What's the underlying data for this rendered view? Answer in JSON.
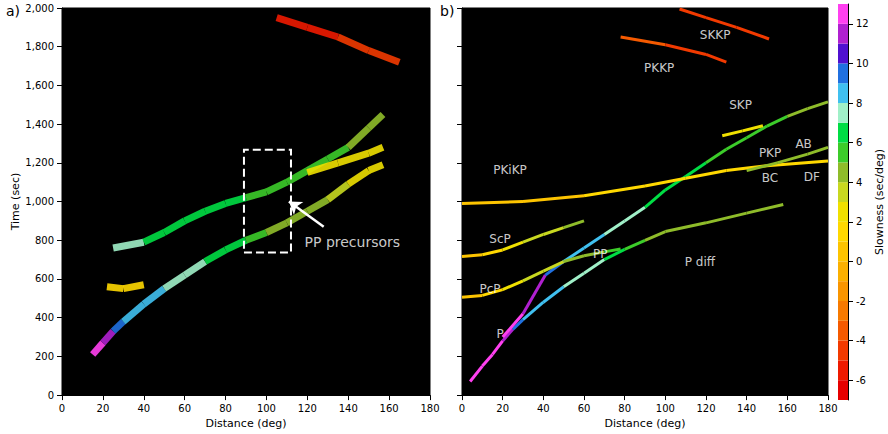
{
  "chart_data": [
    {
      "type": "line",
      "title": "a)",
      "x_label": "Distance (deg)",
      "y_label": "Time (sec)",
      "xlim": [
        0,
        180
      ],
      "xticks": [
        0,
        20,
        40,
        60,
        80,
        100,
        120,
        140,
        160,
        180
      ],
      "ylim": [
        0,
        2000
      ],
      "yticks": [
        0,
        200,
        400,
        600,
        800,
        1000,
        1200,
        1400,
        1600,
        1800,
        2000
      ],
      "grid": false,
      "legend": false,
      "series": [
        {
          "values": [
            [
              15,
              210,
              12.5
            ],
            [
              20,
              270,
              11
            ],
            [
              25,
              330,
              9
            ],
            [
              30,
              380,
              8.5
            ],
            [
              40,
              470,
              8
            ],
            [
              50,
              550,
              7.5
            ],
            [
              60,
              620,
              7
            ],
            [
              70,
              690,
              6.5
            ],
            [
              80,
              750,
              6
            ],
            [
              90,
              800,
              5
            ],
            [
              100,
              840,
              4.5
            ],
            [
              110,
              890,
              4.5
            ],
            [
              120,
              950,
              4
            ],
            [
              130,
              1010,
              3
            ],
            [
              140,
              1090,
              2
            ],
            [
              150,
              1160,
              2
            ],
            [
              157,
              1190,
              1.5
            ]
          ]
        },
        {
          "values": [
            [
              22,
              560,
              1
            ],
            [
              30,
              550,
              1
            ],
            [
              40,
              570,
              2
            ]
          ]
        },
        {
          "values": [
            [
              25,
              760,
              7
            ],
            [
              40,
              790,
              6.5
            ],
            [
              50,
              840,
              6.5
            ],
            [
              60,
              900,
              6
            ],
            [
              70,
              950,
              6
            ],
            [
              80,
              990,
              6
            ],
            [
              90,
              1020,
              5.5
            ],
            [
              100,
              1050,
              5.5
            ],
            [
              110,
              1100,
              5.5
            ],
            [
              120,
              1160,
              5
            ],
            [
              130,
              1220,
              5
            ],
            [
              140,
              1280,
              4.5
            ],
            [
              150,
              1380,
              4.5
            ],
            [
              157,
              1450,
              4
            ]
          ]
        },
        {
          "values": [
            [
              120,
              1150,
              2.5
            ],
            [
              135,
              1200,
              2.5
            ],
            [
              150,
              1250,
              2
            ],
            [
              157,
              1280,
              2
            ]
          ]
        },
        {
          "values": [
            [
              105,
              1950,
              -6
            ],
            [
              120,
              1900,
              -6
            ],
            [
              135,
              1850,
              -5
            ],
            [
              150,
              1780,
              -5
            ],
            [
              165,
              1720,
              -4
            ]
          ]
        }
      ],
      "annotations": [
        {
          "text": "PP precursors",
          "x": 142,
          "y": 789,
          "arrow_from": [
            128,
            870
          ],
          "arrow_to": [
            111,
            1000
          ]
        }
      ],
      "box": {
        "xlim": [
          89,
          112
        ],
        "ylim": [
          737,
          1268
        ]
      }
    },
    {
      "type": "line",
      "title": "b)",
      "x_label": "Distance (deg)",
      "xlim": [
        0,
        180
      ],
      "xticks": [
        0,
        20,
        40,
        60,
        80,
        100,
        120,
        140,
        160,
        180
      ],
      "ylim": [
        0,
        2000
      ],
      "yticks": [
        0,
        200,
        400,
        600,
        800,
        1000,
        1200,
        1400,
        1600,
        1800,
        2000
      ],
      "grid": false,
      "legend": false,
      "tick_labels": "x",
      "series": [
        {
          "name": "P",
          "label_at": [
            18.7,
            314
          ],
          "values": [
            [
              4,
              70,
              13
            ],
            [
              10,
              150,
              13
            ],
            [
              15,
              210,
              12.5
            ],
            [
              20,
              280,
              11
            ],
            [
              25,
              340,
              9
            ],
            [
              30,
              390,
              8.5
            ],
            [
              40,
              480,
              8
            ],
            [
              50,
              560,
              7.5
            ],
            [
              60,
              630,
              7
            ],
            [
              70,
              700,
              6.5
            ],
            [
              80,
              753,
              5.5
            ],
            [
              90,
              800,
              4.8
            ],
            [
              100,
              845,
              4.5
            ]
          ]
        },
        {
          "name": "P diff",
          "label_at": [
            117,
            690
          ],
          "values": [
            [
              100,
              845,
              4.4
            ],
            [
              120,
              890,
              4.4
            ],
            [
              140,
              940,
              4.4
            ],
            [
              158,
              985,
              4.4
            ]
          ]
        },
        {
          "name": "PP",
          "label_at": [
            68,
            727
          ],
          "values": [
            [
              20,
              300,
              12
            ],
            [
              30,
              420,
              11
            ],
            [
              41,
              620,
              9
            ],
            [
              50,
              690,
              8.5
            ],
            [
              60,
              760,
              8
            ],
            [
              70,
              830,
              7.5
            ],
            [
              80,
              900,
              7
            ],
            [
              90,
              970,
              6.5
            ],
            [
              100,
              1060,
              6
            ],
            [
              110,
              1130,
              6
            ],
            [
              120,
              1200,
              5.5
            ],
            [
              130,
              1270,
              5.5
            ],
            [
              140,
              1330,
              5
            ],
            [
              150,
              1390,
              5
            ],
            [
              160,
              1440,
              4.5
            ],
            [
              170,
              1480,
              4.5
            ],
            [
              180,
              1515,
              4
            ]
          ]
        },
        {
          "name": "PcP",
          "label_at": [
            13.8,
            546
          ],
          "values": [
            [
              0,
              505,
              0
            ],
            [
              10,
              515,
              1
            ],
            [
              20,
              545,
              2
            ],
            [
              30,
              590,
              3
            ],
            [
              40,
              640,
              3.5
            ],
            [
              50,
              690,
              4
            ],
            [
              60,
              720,
              4.5
            ],
            [
              70,
              740,
              5
            ],
            [
              78,
              755,
              5
            ]
          ]
        },
        {
          "name": "ScP",
          "label_at": [
            18.7,
            804
          ],
          "values": [
            [
              0,
              716,
              0
            ],
            [
              10,
              725,
              1
            ],
            [
              20,
              750,
              2
            ],
            [
              30,
              790,
              3
            ],
            [
              40,
              830,
              3.5
            ],
            [
              50,
              865,
              4
            ],
            [
              60,
              900,
              4.5
            ]
          ]
        },
        {
          "name": "PKiKP",
          "label_at": [
            23.6,
            1165
          ],
          "values": [
            [
              0,
              990,
              0
            ],
            [
              30,
              1000,
              0.5
            ],
            [
              60,
              1030,
              1
            ],
            [
              90,
              1080,
              1.5
            ],
            [
              110,
              1120,
              1.5
            ],
            [
              130,
              1160,
              1.5
            ],
            [
              150,
              1185,
              1.5
            ],
            [
              180,
              1210,
              1
            ]
          ]
        },
        {
          "name": "PKP",
          "label_at": [
            151.5,
            1252
          ],
          "values": [
            [
              140,
              1160,
              4
            ],
            [
              155,
              1200,
              4
            ],
            [
              170,
              1245,
              4
            ],
            [
              180,
              1280,
              4
            ]
          ]
        },
        {
          "name": "SKP",
          "label_at": [
            137,
            1500
          ],
          "values": [
            [
              128,
              1340,
              2.5
            ],
            [
              138,
              1365,
              2.5
            ],
            [
              148,
              1392,
              2
            ]
          ]
        },
        {
          "name": "PKKP",
          "label_at": [
            97,
            1690
          ],
          "values": [
            [
              78,
              1850,
              -4
            ],
            [
              100,
              1810,
              -4.5
            ],
            [
              120,
              1760,
              -5
            ],
            [
              130,
              1720,
              -5
            ]
          ]
        },
        {
          "name": "SKKP",
          "label_at": [
            124.5,
            1860
          ],
          "values": [
            [
              107,
              1995,
              -5
            ],
            [
              120,
              1950,
              -5
            ],
            [
              135,
              1900,
              -5
            ],
            [
              151,
              1840,
              -5
            ]
          ]
        }
      ],
      "annotations": [
        {
          "text": "AB",
          "x": 168,
          "y": 1299
        },
        {
          "text": "BC",
          "x": 151.5,
          "y": 1124
        },
        {
          "text": "DF",
          "x": 172,
          "y": 1129
        }
      ],
      "colorbar": {
        "label": "Slowness (sec/deg)",
        "range": [
          -7,
          13
        ],
        "ticks": [
          -6,
          -4,
          -2,
          0,
          2,
          4,
          6,
          8,
          10,
          12
        ],
        "bins": [
          -7,
          -6,
          -5,
          -4,
          -3,
          -2,
          -1,
          0,
          1,
          2,
          3,
          4,
          5,
          6,
          7,
          8,
          9,
          10,
          11,
          12,
          13
        ],
        "colors": [
          "#e60000",
          "#ee1a00",
          "#f23a00",
          "#f55a00",
          "#f77a00",
          "#f99500",
          "#fbb000",
          "#fdc400",
          "#ffd800",
          "#f0e000",
          "#c8d820",
          "#8fbc2a",
          "#3ccc2a",
          "#00dd44",
          "#a0f0c8",
          "#40c0f0",
          "#2070e0",
          "#5010d0",
          "#b020d0",
          "#ff40f0"
        ]
      }
    }
  ]
}
